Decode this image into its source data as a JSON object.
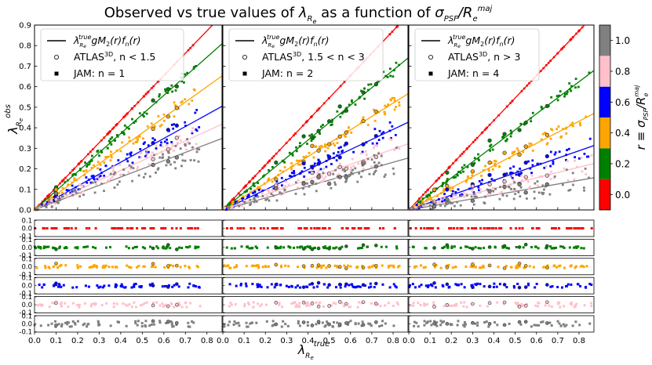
{
  "chart_data": {
    "type": "scatter",
    "title_prefix": "Observed vs true values of ",
    "title_math": "λ_Re as a function of σ_PSF/R_e^maj",
    "ylabel": "λ_Re^obs",
    "xlabel": "λ_Re^true",
    "xlim": [
      0.0,
      0.87
    ],
    "ylim": [
      0.0,
      0.9
    ],
    "x_ticks": [
      "0.0",
      "0.1",
      "0.2",
      "0.3",
      "0.4",
      "0.5",
      "0.6",
      "0.7",
      "0.8"
    ],
    "x_tick_values": [
      0.0,
      0.1,
      0.2,
      0.3,
      0.4,
      0.5,
      0.6,
      0.7,
      0.8
    ],
    "y_ticks": [
      "0.0",
      "0.1",
      "0.2",
      "0.3",
      "0.4",
      "0.5",
      "0.6",
      "0.7",
      "0.8",
      "0.9"
    ],
    "y_tick_values": [
      0.0,
      0.1,
      0.2,
      0.3,
      0.4,
      0.5,
      0.6,
      0.7,
      0.8,
      0.9
    ],
    "residual_ylim": [
      -0.1,
      0.1
    ],
    "residual_ticks": [
      "0.1",
      "0.0",
      "-0.1"
    ],
    "residual_tick_values": [
      0.1,
      0.0,
      -0.1
    ],
    "colorbar": {
      "label": "r ≡ σ_PSF/R_e^maj",
      "ticks": [
        "0.0",
        "0.2",
        "0.4",
        "0.6",
        "0.8",
        "1.0"
      ]
    },
    "series": [
      {
        "name": "r = 0.0",
        "color": "#ff0000",
        "slopes": [
          1.09,
          1.09,
          1.09
        ]
      },
      {
        "name": "r = 0.2",
        "color": "#008000",
        "slopes": [
          0.93,
          0.85,
          0.78
        ]
      },
      {
        "name": "r = 0.4",
        "color": "#ffa500",
        "slopes": [
          0.75,
          0.65,
          0.54
        ]
      },
      {
        "name": "r = 0.6",
        "color": "#0000ff",
        "slopes": [
          0.58,
          0.49,
          0.36
        ]
      },
      {
        "name": "r = 0.8",
        "color": "#ffc0cb",
        "slopes": [
          0.48,
          0.37,
          0.26
        ]
      },
      {
        "name": "r = 1.0",
        "color": "#808080",
        "slopes": [
          0.4,
          0.29,
          0.18
        ]
      }
    ],
    "panels": [
      {
        "legend": [
          {
            "symbol": "line",
            "label": "λ^true_Re gM₂(r)f_n(r)"
          },
          {
            "symbol": "open-circle",
            "label": "ATLAS³ᴰ, n < 1.5"
          },
          {
            "symbol": "square",
            "label": "JAM: n = 1"
          }
        ],
        "x_max": 0.77,
        "atlas_x": [
          0.1,
          0.55,
          0.62,
          0.66
        ]
      },
      {
        "legend": [
          {
            "symbol": "line",
            "label": "λ^true_Re gM₂(r)f_n(r)"
          },
          {
            "symbol": "open-circle",
            "label": "ATLAS³ᴰ, 1.5 < n < 3"
          },
          {
            "symbol": "square",
            "label": "JAM: n = 2"
          }
        ],
        "x_max": 0.83,
        "atlas_x": [
          0.25,
          0.38,
          0.42,
          0.45,
          0.5,
          0.55,
          0.58,
          0.66,
          0.72
        ]
      },
      {
        "legend": [
          {
            "symbol": "line",
            "label": "λ^true_Re gM₂(r)f_n(r)"
          },
          {
            "symbol": "open-circle",
            "label": "ATLAS³ᴰ, n > 3"
          },
          {
            "symbol": "square",
            "label": "JAM: n = 4"
          }
        ],
        "x_max": 0.86,
        "atlas_x": [
          0.12,
          0.18,
          0.3,
          0.38,
          0.45,
          0.52,
          0.55,
          0.65
        ]
      }
    ]
  },
  "legend_text": {
    "lambda": "λ",
    "sub_Re": "R",
    "sub_e": "e",
    "sup_true": "true",
    "gM": "gM",
    "two": "2",
    "r_paren": "(r)",
    "f": "f",
    "n": "n",
    "atlas": "ATLAS",
    "threeD": "3D",
    "panel_conditions": [
      ", n < 1.5",
      ", 1.5 < n < 3",
      ", n > 3"
    ],
    "jam": [
      "JAM: n = 1",
      "JAM: n = 2",
      "JAM: n = 4"
    ]
  },
  "title_text": {
    "prefix": "Observed vs true values of ",
    "lambda": "λ",
    "sub_R": "R",
    "sub_e": "e",
    "middle": " as a function of ",
    "sigma": "σ",
    "sub_psf": "PSF",
    "slash": "/R",
    "sub_e2": "e",
    "sup_maj": "maj"
  },
  "axis_text": {
    "ylabel_lambda": "λ",
    "ylabel_sub": "R",
    "ylabel_sube": "e",
    "ylabel_sup": "obs",
    "xlabel_lambda": "λ",
    "xlabel_sub": "R",
    "xlabel_sube": "e",
    "xlabel_sup": "true",
    "cb_r": "r ≡ σ",
    "cb_psf": "PSF",
    "cb_slash": "/R",
    "cb_e": "e",
    "cb_maj": "maj"
  }
}
